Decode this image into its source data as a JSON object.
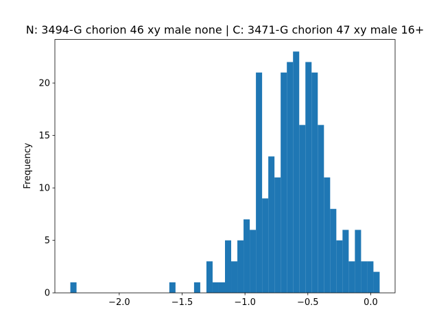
{
  "chart_data": {
    "type": "histogram",
    "title": "N: 3494-G chorion 46 xy male none | C: 3471-G chorion 47 xy male 16+",
    "ylabel": "Frequency",
    "color": "#1f77b4",
    "bins": [
      -2.389,
      -2.3398,
      -2.2906,
      -2.2414,
      -2.1922,
      -2.143,
      -2.0938,
      -2.0446,
      -1.9954,
      -1.9462,
      -1.897,
      -1.8478,
      -1.7986,
      -1.7494,
      -1.7002,
      -1.651,
      -1.6018,
      -1.5526,
      -1.5034,
      -1.4542,
      -1.405,
      -1.3558,
      -1.3066,
      -1.2574,
      -1.2082,
      -1.159,
      -1.1098,
      -1.0606,
      -1.0114,
      -0.9622,
      -0.913,
      -0.8638,
      -0.8146,
      -0.7654,
      -0.7162,
      -0.667,
      -0.6178,
      -0.5686,
      -0.5194,
      -0.4702,
      -0.421,
      -0.3718,
      -0.3226,
      -0.2734,
      -0.2242,
      -0.175,
      -0.1258,
      -0.0766,
      -0.0274,
      0.0218,
      0.071
    ],
    "values": [
      1,
      0,
      0,
      0,
      0,
      0,
      0,
      0,
      0,
      0,
      0,
      0,
      0,
      0,
      0,
      0,
      1,
      0,
      0,
      0,
      1,
      0,
      3,
      1,
      1,
      5,
      3,
      5,
      7,
      6,
      21,
      9,
      13,
      11,
      21,
      22,
      23,
      16,
      22,
      21,
      16,
      11,
      8,
      5,
      6,
      3,
      6,
      3,
      3,
      2
    ],
    "xlim": [
      -2.512,
      0.194
    ],
    "ylim": [
      0,
      24.15
    ],
    "xticks": [
      {
        "value": -2.0,
        "label": "−2.0"
      },
      {
        "value": -1.5,
        "label": "−1.5"
      },
      {
        "value": -1.0,
        "label": "−1.0"
      },
      {
        "value": -0.5,
        "label": "−0.5"
      },
      {
        "value": 0.0,
        "label": "0.0"
      }
    ],
    "yticks": [
      0,
      5,
      10,
      15,
      20
    ]
  }
}
